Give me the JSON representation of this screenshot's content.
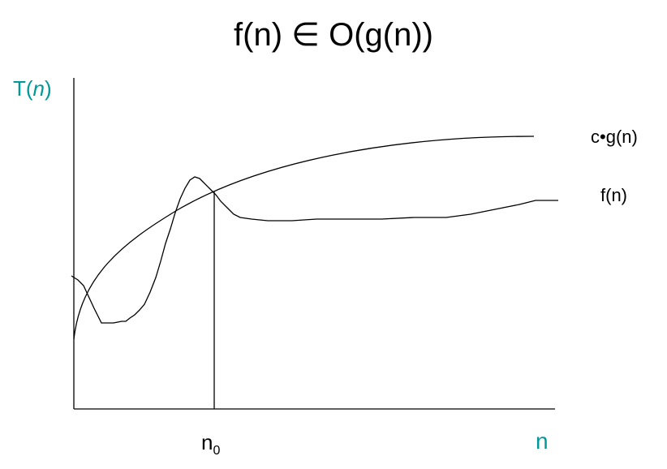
{
  "title": "f(n) ∈ O(g(n))",
  "yaxis_label": "T(n)",
  "xaxis_label": "n",
  "threshold_label": "n",
  "threshold_subscript": "0",
  "curves": {
    "upper_bound_label": "c•g(n)",
    "function_label": "f(n)"
  },
  "colors": {
    "axis_label": "#009999",
    "lines": "#000000",
    "text": "#000000"
  }
}
